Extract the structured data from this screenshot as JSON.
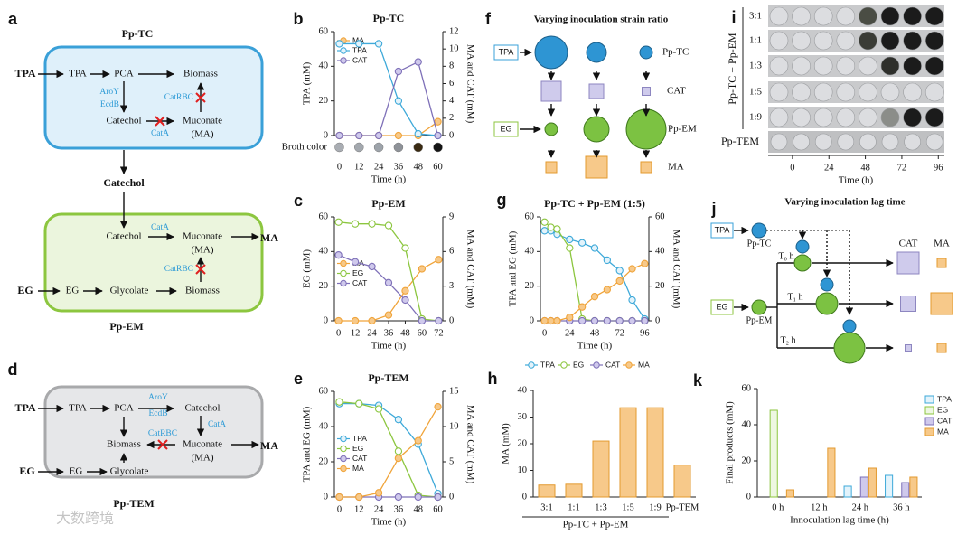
{
  "chart_data": [
    {
      "panel": "b",
      "type": "line",
      "title": "Pp-TC",
      "annotation": "Broth color",
      "xlabel": "Time (h)",
      "ylabel": "TPA (mM)",
      "y2label": "MA and CAT (mM)",
      "x": [
        0,
        12,
        24,
        36,
        48,
        60
      ],
      "xlim": [
        -3,
        63
      ],
      "xticks": [
        0,
        12,
        24,
        36,
        48,
        60
      ],
      "ylim": [
        0,
        60
      ],
      "yticks": [
        0,
        20,
        40,
        60
      ],
      "y2lim": [
        0,
        12
      ],
      "y2ticks": [
        0,
        2,
        4,
        6,
        8,
        10,
        12
      ],
      "legend": "upper left",
      "series": [
        {
          "name": "MA",
          "color": "#f0a43a",
          "marker_fill": "#f7c98a",
          "axis": "y2",
          "values": [
            0,
            0,
            0,
            0,
            0,
            1.6
          ]
        },
        {
          "name": "TPA",
          "color": "#3ea9d9",
          "marker_fill": "#e3f3fb",
          "values": [
            53,
            53,
            53,
            20,
            1,
            0
          ]
        },
        {
          "name": "CAT",
          "color": "#7e70b8",
          "marker_fill": "#cfc9ec",
          "axis": "y2",
          "values": [
            0,
            0,
            0,
            7.4,
            8.5,
            0
          ]
        }
      ]
    },
    {
      "panel": "c",
      "type": "line",
      "title": "Pp-EM",
      "xlabel": "Time (h)",
      "ylabel": "EG (mM)",
      "y2label": "MA and CAT (mM)",
      "x": [
        0,
        12,
        24,
        36,
        48,
        60,
        72
      ],
      "xlim": [
        -3,
        75
      ],
      "xticks": [
        0,
        12,
        24,
        36,
        48,
        60,
        72
      ],
      "ylim": [
        0,
        60
      ],
      "yticks": [
        0,
        20,
        40,
        60
      ],
      "y2lim": [
        0,
        9
      ],
      "y2ticks": [
        0,
        3,
        6,
        9
      ],
      "legend": "center left",
      "series": [
        {
          "name": "MA",
          "color": "#f0a43a",
          "marker_fill": "#f7c98a",
          "axis": "y2",
          "values": [
            0,
            0,
            0,
            0.5,
            2.6,
            4.5,
            5.3
          ]
        },
        {
          "name": "EG",
          "color": "#8cc63f",
          "marker_fill": "#ffffff",
          "values": [
            57,
            56,
            56,
            55,
            42,
            1,
            0
          ]
        },
        {
          "name": "CAT",
          "color": "#7e70b8",
          "marker_fill": "#cfc9ec",
          "axis": "y2",
          "values": [
            5.7,
            5.1,
            4.7,
            3.3,
            1.8,
            0,
            0
          ]
        }
      ]
    },
    {
      "panel": "e",
      "type": "line",
      "title": "Pp-TEM",
      "xlabel": "Time (h)",
      "ylabel": "TPA and EG (mM)",
      "y2label": "MA and CAT (mM)",
      "x": [
        0,
        12,
        24,
        36,
        48,
        60
      ],
      "xlim": [
        -3,
        63
      ],
      "xticks": [
        0,
        12,
        24,
        36,
        48,
        60
      ],
      "ylim": [
        0,
        60
      ],
      "yticks": [
        0,
        20,
        40,
        60
      ],
      "y2lim": [
        0,
        15
      ],
      "y2ticks": [
        0,
        5,
        10,
        15
      ],
      "legend": "center left",
      "series": [
        {
          "name": "TPA",
          "color": "#3ea9d9",
          "marker_fill": "#e3f3fb",
          "values": [
            53,
            53,
            52,
            44,
            30,
            2
          ]
        },
        {
          "name": "EG",
          "color": "#8cc63f",
          "marker_fill": "#ffffff",
          "values": [
            54,
            53,
            50,
            26,
            1,
            0
          ]
        },
        {
          "name": "CAT",
          "color": "#7e70b8",
          "marker_fill": "#cfc9ec",
          "axis": "y2",
          "values": [
            0,
            0,
            0,
            0,
            0,
            0
          ]
        },
        {
          "name": "MA",
          "color": "#f0a43a",
          "marker_fill": "#f7c98a",
          "axis": "y2",
          "values": [
            0,
            0,
            0.6,
            5.5,
            8,
            12.8
          ]
        }
      ]
    },
    {
      "panel": "g",
      "type": "line",
      "title": "Pp-TC + Pp-EM (1:5)",
      "xlabel": "Time (h)",
      "ylabel": "TPA and EG (mM)",
      "y2label": "MA and CAT (mM)",
      "x": [
        0,
        6,
        12,
        24,
        36,
        48,
        60,
        72,
        84,
        96
      ],
      "xlim": [
        -4,
        100
      ],
      "xticks": [
        0,
        24,
        48,
        72,
        96
      ],
      "ylim": [
        0,
        60
      ],
      "yticks": [
        0,
        20,
        40,
        60
      ],
      "y2lim": [
        0,
        60
      ],
      "y2ticks": [
        0,
        20,
        40,
        60
      ],
      "legend": "below",
      "series": [
        {
          "name": "TPA",
          "color": "#3ea9d9",
          "marker_fill": "#e3f3fb",
          "values": [
            52,
            52,
            50,
            47,
            45,
            42,
            35,
            29,
            12,
            1
          ]
        },
        {
          "name": "EG",
          "color": "#8cc63f",
          "marker_fill": "#ffffff",
          "values": [
            57,
            54,
            53,
            42,
            1,
            0,
            0,
            0,
            0,
            0
          ]
        },
        {
          "name": "CAT",
          "color": "#7e70b8",
          "marker_fill": "#cfc9ec",
          "axis": "y2",
          "values": [
            0,
            0,
            0,
            0,
            0,
            0,
            0,
            0,
            0,
            0
          ]
        },
        {
          "name": "MA",
          "color": "#f0a43a",
          "marker_fill": "#f7c98a",
          "axis": "y2",
          "values": [
            0,
            0,
            0,
            2,
            8,
            14,
            18,
            23,
            30,
            33
          ]
        }
      ]
    },
    {
      "panel": "h",
      "type": "bar",
      "ylabel": "MA (mM)",
      "group_label": "Pp-TC + Pp-EM",
      "categories": [
        "3:1",
        "1:1",
        "1:3",
        "1:5",
        "1:9",
        "Pp-TEM"
      ],
      "values": [
        4.5,
        4.8,
        21,
        33.5,
        33.5,
        12
      ],
      "color": "#e39a2f",
      "fill": "#f7c98a",
      "ylim": [
        0,
        40
      ],
      "yticks": [
        0,
        10,
        20,
        30,
        40
      ]
    },
    {
      "panel": "k",
      "type": "bar",
      "ylabel": "Final products (mM)",
      "xlabel": "Innoculation lag time (h)",
      "categories": [
        "0 h",
        "12 h",
        "24 h",
        "36 h"
      ],
      "ylim": [
        0,
        60
      ],
      "yticks": [
        0,
        20,
        40,
        60
      ],
      "legend": "upper right",
      "series": [
        {
          "name": "TPA",
          "color": "#3ea9d9",
          "marker_fill": "#e3f3fb",
          "values": [
            0,
            0,
            6,
            12
          ]
        },
        {
          "name": "EG",
          "color": "#8cc63f",
          "marker_fill": "#eef7e2",
          "values": [
            48,
            0,
            0,
            0
          ]
        },
        {
          "name": "CAT",
          "color": "#7e70b8",
          "marker_fill": "#cfc9ec",
          "values": [
            0,
            0,
            11,
            8
          ]
        },
        {
          "name": "MA",
          "color": "#e39a2f",
          "marker_fill": "#f7c98a",
          "values": [
            4,
            27,
            16,
            11
          ]
        }
      ]
    }
  ],
  "diagrams": {
    "a": {
      "label": "a",
      "top_title": "Pp-TC",
      "tc": {
        "input": "TPA",
        "tpa": "TPA",
        "pca": "PCA",
        "biomass": "Biomass",
        "aroy": "AroY",
        "ecdb": "EcdB",
        "catechol": "Catechol",
        "muconate": "Muconate",
        "ma": "(MA)",
        "cata": "CatA",
        "catrbc": "CatRBC"
      },
      "between": "Catechol",
      "em": {
        "catechol": "Catechol",
        "cata": "CatA",
        "muconate": "Muconate",
        "ma": "(MA)",
        "output": "MA",
        "catrbc": "CatRBC",
        "input": "EG",
        "eg": "EG",
        "glycolate": "Glycolate",
        "biomass": "Biomass"
      },
      "bottom_title": "Pp-EM"
    },
    "d": {
      "label": "d",
      "input": "TPA",
      "tpa": "TPA",
      "pca": "PCA",
      "aroy": "AroY",
      "ecdb": "EcdB",
      "catechol": "Catechol",
      "cata": "CatA",
      "catrbc": "CatRBC",
      "biomass": "Biomass",
      "muconate": "Muconate",
      "ma": "(MA)",
      "output": "MA",
      "eg_input": "EG",
      "eg": "EG",
      "glycolate": "Glycolate",
      "title": "Pp-TEM"
    },
    "f": {
      "label": "f",
      "title": "Varying inoculation strain ratio",
      "tpa": "TPA",
      "eg": "EG",
      "pp_tc": "Pp-TC",
      "cat": "CAT",
      "pp_em": "Pp-EM",
      "ma": "MA"
    },
    "i": {
      "label": "i",
      "group_label": "Pp-TC + Pp-EM",
      "rows": [
        "3:1",
        "1:1",
        "1:3",
        "1:5",
        "1:9",
        "Pp-TEM"
      ],
      "xlabel": "Time (h)",
      "xlim": [
        -16,
        100
      ],
      "xticks": [
        0,
        24,
        48,
        72,
        96
      ]
    },
    "j": {
      "label": "j",
      "title": "Varying inoculation lag time",
      "tpa": "TPA",
      "pp_tc": "Pp-TC",
      "eg": "EG",
      "pp_em": "Pp-EM",
      "t0": "T₀ h",
      "t1": "T₁ h",
      "t2": "T₂ h",
      "cat": "CAT",
      "ma": "MA"
    },
    "watermark": "大数跨境"
  }
}
